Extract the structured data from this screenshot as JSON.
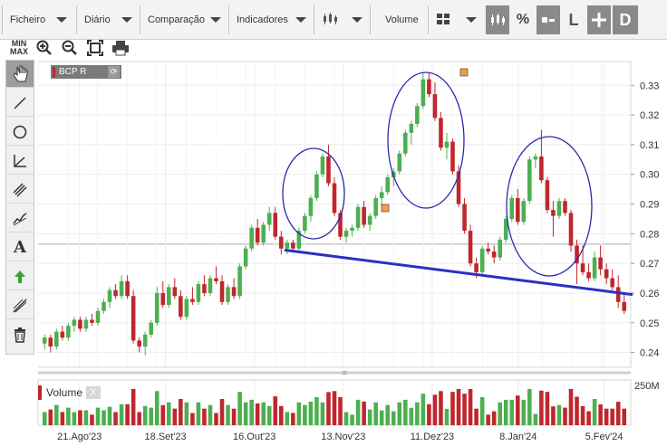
{
  "menu": {
    "file": "Ficheiro",
    "period": "Diário",
    "compare": "Comparação",
    "indicators": "Indicadores",
    "volume": "Volume",
    "percent": "%",
    "log": "L",
    "d": "D"
  },
  "toolbar2": {
    "minmax_top": "MIN",
    "minmax_bottom": "MAX"
  },
  "series": {
    "label": "BCP R",
    "volume_label": "Volume",
    "volume_close": "X"
  },
  "accent_colors": {
    "up": "#4caf50",
    "down": "#c0262d",
    "trendline": "#2b2fc4",
    "marker": "#f0a040"
  },
  "icons": [
    "hand-icon",
    "line-icon",
    "circle-icon",
    "angle-icon",
    "channel-icon",
    "pitchfork-icon",
    "text-icon",
    "arrow-up-icon",
    "fibonacci-icon",
    "trash-icon"
  ],
  "chart_data": {
    "type": "candlestick",
    "title": "",
    "ylim": [
      0.235,
      0.338
    ],
    "y_ticks": [
      "0.33",
      "0.32",
      "0.31",
      "0.30",
      "0.29",
      "0.28",
      "0.27",
      "0.26",
      "0.25",
      "0.24"
    ],
    "x_ticks": [
      "21.Ago'23",
      "18.Set'23",
      "16.Out'23",
      "13.Nov'23",
      "11.Dez'23",
      "8.Jan'24",
      "5.Fev'24"
    ],
    "volume_max_label": "250M",
    "candles": [
      [
        0.243,
        0.246,
        0.241,
        0.245
      ],
      [
        0.245,
        0.246,
        0.24,
        0.242
      ],
      [
        0.242,
        0.248,
        0.241,
        0.247
      ],
      [
        0.247,
        0.249,
        0.244,
        0.245
      ],
      [
        0.245,
        0.25,
        0.244,
        0.249
      ],
      [
        0.249,
        0.252,
        0.247,
        0.251
      ],
      [
        0.251,
        0.252,
        0.247,
        0.248
      ],
      [
        0.248,
        0.252,
        0.247,
        0.251
      ],
      [
        0.251,
        0.253,
        0.249,
        0.25
      ],
      [
        0.25,
        0.255,
        0.249,
        0.254
      ],
      [
        0.254,
        0.258,
        0.253,
        0.257
      ],
      [
        0.257,
        0.262,
        0.255,
        0.261
      ],
      [
        0.261,
        0.263,
        0.258,
        0.259
      ],
      [
        0.259,
        0.266,
        0.258,
        0.264
      ],
      [
        0.264,
        0.266,
        0.258,
        0.259
      ],
      [
        0.259,
        0.261,
        0.243,
        0.244
      ],
      [
        0.244,
        0.245,
        0.24,
        0.242
      ],
      [
        0.242,
        0.247,
        0.239,
        0.246
      ],
      [
        0.246,
        0.251,
        0.245,
        0.25
      ],
      [
        0.25,
        0.262,
        0.249,
        0.26
      ],
      [
        0.26,
        0.264,
        0.255,
        0.256
      ],
      [
        0.256,
        0.263,
        0.255,
        0.262
      ],
      [
        0.262,
        0.265,
        0.258,
        0.259
      ],
      [
        0.259,
        0.261,
        0.251,
        0.252
      ],
      [
        0.252,
        0.259,
        0.251,
        0.258
      ],
      [
        0.258,
        0.262,
        0.256,
        0.257
      ],
      [
        0.257,
        0.264,
        0.256,
        0.263
      ],
      [
        0.263,
        0.266,
        0.259,
        0.26
      ],
      [
        0.26,
        0.266,
        0.259,
        0.265
      ],
      [
        0.265,
        0.269,
        0.263,
        0.264
      ],
      [
        0.264,
        0.266,
        0.256,
        0.257
      ],
      [
        0.257,
        0.263,
        0.256,
        0.262
      ],
      [
        0.262,
        0.265,
        0.258,
        0.259
      ],
      [
        0.259,
        0.27,
        0.258,
        0.269
      ],
      [
        0.269,
        0.276,
        0.268,
        0.275
      ],
      [
        0.275,
        0.283,
        0.274,
        0.282
      ],
      [
        0.282,
        0.285,
        0.276,
        0.277
      ],
      [
        0.277,
        0.284,
        0.276,
        0.283
      ],
      [
        0.283,
        0.289,
        0.281,
        0.287
      ],
      [
        0.287,
        0.289,
        0.278,
        0.279
      ],
      [
        0.279,
        0.281,
        0.273,
        0.275
      ],
      [
        0.275,
        0.278,
        0.273,
        0.277
      ],
      [
        0.277,
        0.278,
        0.274,
        0.275
      ],
      [
        0.275,
        0.282,
        0.274,
        0.281
      ],
      [
        0.281,
        0.287,
        0.28,
        0.286
      ],
      [
        0.286,
        0.293,
        0.284,
        0.292
      ],
      [
        0.292,
        0.301,
        0.291,
        0.3
      ],
      [
        0.3,
        0.307,
        0.299,
        0.306
      ],
      [
        0.306,
        0.31,
        0.296,
        0.297
      ],
      [
        0.297,
        0.299,
        0.286,
        0.287
      ],
      [
        0.287,
        0.288,
        0.278,
        0.279
      ],
      [
        0.279,
        0.282,
        0.277,
        0.281
      ],
      [
        0.281,
        0.283,
        0.279,
        0.282
      ],
      [
        0.282,
        0.29,
        0.281,
        0.289
      ],
      [
        0.289,
        0.291,
        0.282,
        0.283
      ],
      [
        0.283,
        0.287,
        0.281,
        0.286
      ],
      [
        0.286,
        0.293,
        0.285,
        0.292
      ],
      [
        0.292,
        0.296,
        0.289,
        0.294
      ],
      [
        0.294,
        0.3,
        0.293,
        0.299
      ],
      [
        0.299,
        0.302,
        0.296,
        0.301
      ],
      [
        0.301,
        0.308,
        0.3,
        0.307
      ],
      [
        0.307,
        0.315,
        0.306,
        0.314
      ],
      [
        0.314,
        0.318,
        0.31,
        0.317
      ],
      [
        0.317,
        0.324,
        0.316,
        0.323
      ],
      [
        0.323,
        0.334,
        0.322,
        0.332
      ],
      [
        0.332,
        0.334,
        0.326,
        0.327
      ],
      [
        0.327,
        0.331,
        0.318,
        0.319
      ],
      [
        0.319,
        0.321,
        0.308,
        0.309
      ],
      [
        0.309,
        0.314,
        0.305,
        0.311
      ],
      [
        0.311,
        0.312,
        0.3,
        0.301
      ],
      [
        0.301,
        0.303,
        0.289,
        0.29
      ],
      [
        0.29,
        0.292,
        0.28,
        0.281
      ],
      [
        0.281,
        0.283,
        0.269,
        0.27
      ],
      [
        0.27,
        0.272,
        0.265,
        0.267
      ],
      [
        0.267,
        0.276,
        0.266,
        0.275
      ],
      [
        0.275,
        0.277,
        0.273,
        0.274
      ],
      [
        0.274,
        0.276,
        0.27,
        0.272
      ],
      [
        0.272,
        0.279,
        0.271,
        0.278
      ],
      [
        0.278,
        0.286,
        0.277,
        0.285
      ],
      [
        0.285,
        0.293,
        0.284,
        0.292
      ],
      [
        0.292,
        0.295,
        0.283,
        0.284
      ],
      [
        0.284,
        0.292,
        0.283,
        0.291
      ],
      [
        0.291,
        0.306,
        0.29,
        0.305
      ],
      [
        0.305,
        0.307,
        0.302,
        0.306
      ],
      [
        0.306,
        0.315,
        0.297,
        0.298
      ],
      [
        0.298,
        0.299,
        0.287,
        0.288
      ],
      [
        0.288,
        0.291,
        0.279,
        0.286
      ],
      [
        0.286,
        0.292,
        0.285,
        0.291
      ],
      [
        0.291,
        0.292,
        0.286,
        0.287
      ],
      [
        0.287,
        0.288,
        0.274,
        0.276
      ],
      [
        0.276,
        0.278,
        0.263,
        0.27
      ],
      [
        0.27,
        0.276,
        0.266,
        0.267
      ],
      [
        0.267,
        0.27,
        0.264,
        0.265
      ],
      [
        0.265,
        0.274,
        0.264,
        0.272
      ],
      [
        0.272,
        0.276,
        0.266,
        0.268
      ],
      [
        0.268,
        0.27,
        0.263,
        0.265
      ],
      [
        0.265,
        0.268,
        0.261,
        0.262
      ],
      [
        0.262,
        0.266,
        0.255,
        0.257
      ],
      [
        0.257,
        0.26,
        0.253,
        0.254
      ]
    ],
    "trendline": [
      [
        0.2745,
        0.2595
      ]
    ]
  }
}
